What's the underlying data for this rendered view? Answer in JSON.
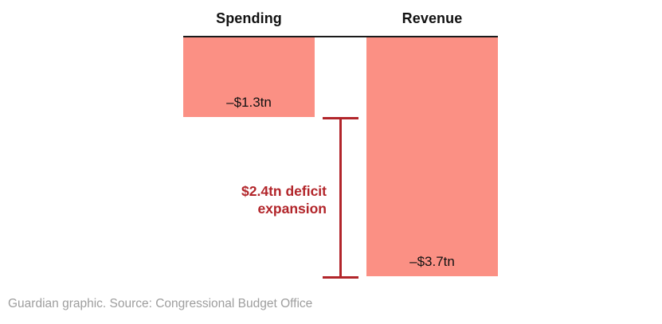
{
  "chart": {
    "columns": [
      {
        "header": "Spending",
        "value_label": "–$1.3tn",
        "value": -1.3
      },
      {
        "header": "Revenue",
        "value_label": "–$3.7tn",
        "value": -3.7
      }
    ],
    "annotation": {
      "line1": "$2.4tn deficit",
      "line2": "expansion",
      "value": 2.4
    }
  },
  "caption": "Guardian graphic. Source: Congressional Budget Office",
  "colors": {
    "bar": "#fb9084",
    "annotation": "#b2252a",
    "axis": "#1a1a1a",
    "caption": "#9e9e9e",
    "label": "#121212"
  },
  "chart_data": {
    "type": "bar",
    "categories": [
      "Spending",
      "Revenue"
    ],
    "values": [
      -1.3,
      -3.7
    ],
    "value_labels": [
      "–$1.3tn",
      "–$3.7tn"
    ],
    "units": "trillion USD",
    "title": "",
    "xlabel": "",
    "ylabel": "",
    "ylim": [
      -3.7,
      0
    ],
    "baseline": 0,
    "grid": false,
    "legend": false,
    "bar_color": "#fb9084",
    "annotations": [
      {
        "text": "$2.4tn deficit expansion",
        "type": "bracket",
        "from_value": -1.3,
        "to_value": -3.7,
        "color": "#b2252a"
      }
    ],
    "source_note": "Guardian graphic. Source: Congressional Budget Office"
  }
}
